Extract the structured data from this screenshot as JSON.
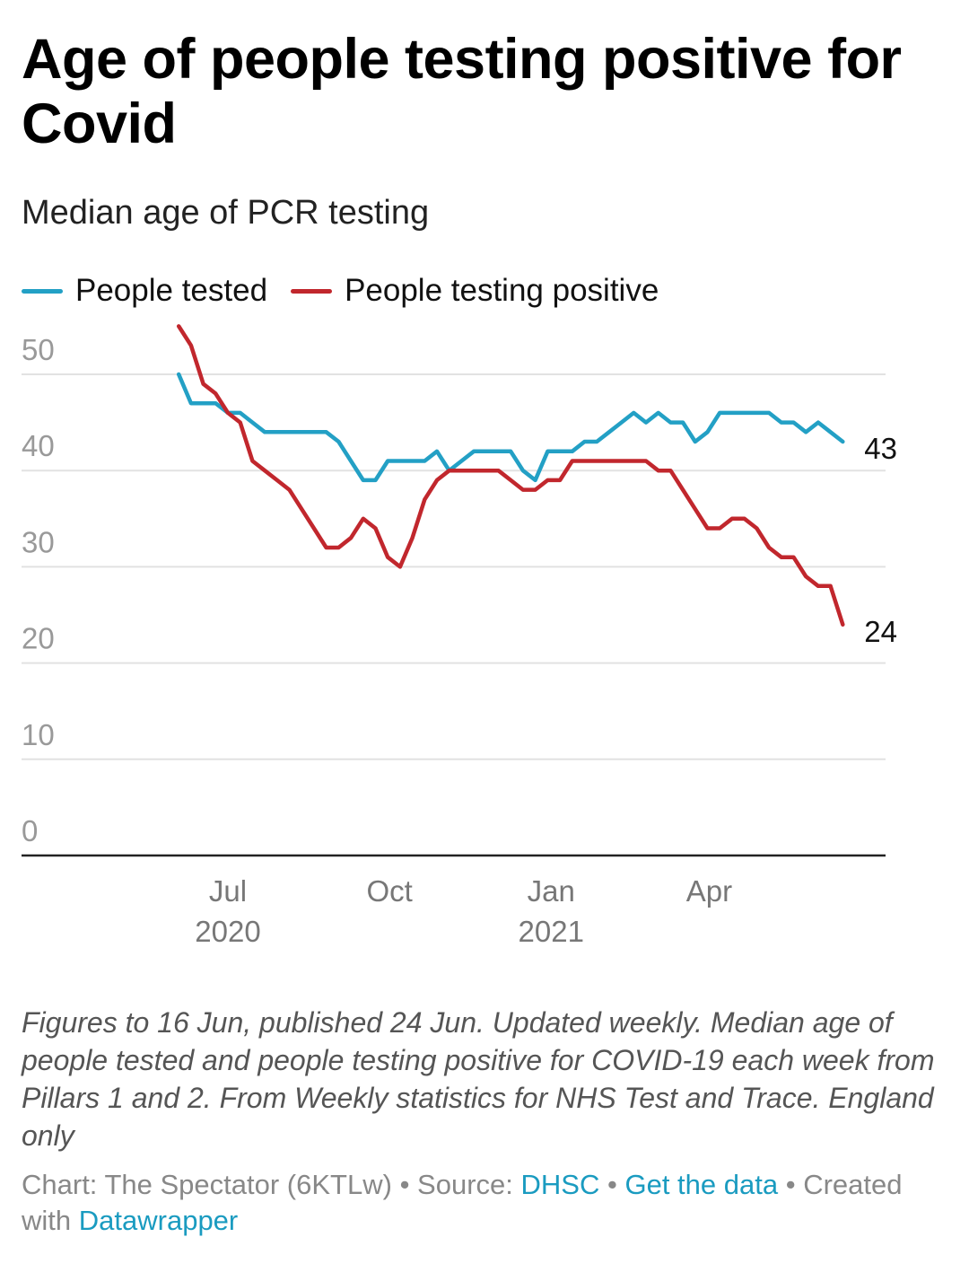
{
  "header": {
    "title": "Age of people testing positive for Covid",
    "subtitle": "Median age of PCR testing"
  },
  "legend": [
    {
      "name": "People tested",
      "color": "#23a0c5"
    },
    {
      "name": "People testing positive",
      "color": "#c1272d"
    }
  ],
  "chart_data": {
    "type": "line",
    "x_unit": "date",
    "ylim": [
      0,
      50
    ],
    "y_ticks": [
      0,
      10,
      20,
      30,
      40,
      50
    ],
    "grid": true,
    "legend_position": "top-left",
    "x_ticks": [
      {
        "date": "2020-07-01",
        "month": "Jul",
        "year": "2020"
      },
      {
        "date": "2020-10-01",
        "month": "Oct",
        "year": ""
      },
      {
        "date": "2021-01-01",
        "month": "Jan",
        "year": "2021"
      },
      {
        "date": "2021-04-01",
        "month": "Apr",
        "year": ""
      }
    ],
    "series": [
      {
        "name": "People tested",
        "color": "#23a0c5",
        "end_label": "43",
        "points": [
          [
            "2020-06-03",
            50
          ],
          [
            "2020-06-10",
            47
          ],
          [
            "2020-06-17",
            47
          ],
          [
            "2020-06-24",
            47
          ],
          [
            "2020-07-01",
            46
          ],
          [
            "2020-07-08",
            46
          ],
          [
            "2020-07-15",
            45
          ],
          [
            "2020-07-22",
            44
          ],
          [
            "2020-07-29",
            44
          ],
          [
            "2020-08-05",
            44
          ],
          [
            "2020-08-12",
            44
          ],
          [
            "2020-08-19",
            44
          ],
          [
            "2020-08-26",
            44
          ],
          [
            "2020-09-02",
            43
          ],
          [
            "2020-09-09",
            41
          ],
          [
            "2020-09-16",
            39
          ],
          [
            "2020-09-23",
            39
          ],
          [
            "2020-09-30",
            41
          ],
          [
            "2020-10-07",
            41
          ],
          [
            "2020-10-14",
            41
          ],
          [
            "2020-10-21",
            41
          ],
          [
            "2020-10-28",
            42
          ],
          [
            "2020-11-04",
            40
          ],
          [
            "2020-11-11",
            41
          ],
          [
            "2020-11-18",
            42
          ],
          [
            "2020-11-25",
            42
          ],
          [
            "2020-12-02",
            42
          ],
          [
            "2020-12-09",
            42
          ],
          [
            "2020-12-16",
            40
          ],
          [
            "2020-12-23",
            39
          ],
          [
            "2020-12-30",
            42
          ],
          [
            "2021-01-06",
            42
          ],
          [
            "2021-01-13",
            42
          ],
          [
            "2021-01-20",
            43
          ],
          [
            "2021-01-27",
            43
          ],
          [
            "2021-02-03",
            44
          ],
          [
            "2021-02-10",
            45
          ],
          [
            "2021-02-17",
            46
          ],
          [
            "2021-02-24",
            45
          ],
          [
            "2021-03-03",
            46
          ],
          [
            "2021-03-10",
            45
          ],
          [
            "2021-03-17",
            45
          ],
          [
            "2021-03-24",
            43
          ],
          [
            "2021-03-31",
            44
          ],
          [
            "2021-04-07",
            46
          ],
          [
            "2021-04-14",
            46
          ],
          [
            "2021-04-21",
            46
          ],
          [
            "2021-04-28",
            46
          ],
          [
            "2021-05-05",
            46
          ],
          [
            "2021-05-12",
            45
          ],
          [
            "2021-05-19",
            45
          ],
          [
            "2021-05-26",
            44
          ],
          [
            "2021-06-02",
            45
          ],
          [
            "2021-06-09",
            44
          ],
          [
            "2021-06-16",
            43
          ]
        ]
      },
      {
        "name": "People testing positive",
        "color": "#c1272d",
        "end_label": "24",
        "points": [
          [
            "2020-06-03",
            55
          ],
          [
            "2020-06-10",
            53
          ],
          [
            "2020-06-17",
            49
          ],
          [
            "2020-06-24",
            48
          ],
          [
            "2020-07-01",
            46
          ],
          [
            "2020-07-08",
            45
          ],
          [
            "2020-07-15",
            41
          ],
          [
            "2020-07-22",
            40
          ],
          [
            "2020-07-29",
            39
          ],
          [
            "2020-08-05",
            38
          ],
          [
            "2020-08-12",
            36
          ],
          [
            "2020-08-19",
            34
          ],
          [
            "2020-08-26",
            32
          ],
          [
            "2020-09-02",
            32
          ],
          [
            "2020-09-09",
            33
          ],
          [
            "2020-09-16",
            35
          ],
          [
            "2020-09-23",
            34
          ],
          [
            "2020-09-30",
            31
          ],
          [
            "2020-10-07",
            30
          ],
          [
            "2020-10-14",
            33
          ],
          [
            "2020-10-21",
            37
          ],
          [
            "2020-10-28",
            39
          ],
          [
            "2020-11-04",
            40
          ],
          [
            "2020-11-11",
            40
          ],
          [
            "2020-11-18",
            40
          ],
          [
            "2020-11-25",
            40
          ],
          [
            "2020-12-02",
            40
          ],
          [
            "2020-12-09",
            39
          ],
          [
            "2020-12-16",
            38
          ],
          [
            "2020-12-23",
            38
          ],
          [
            "2020-12-30",
            39
          ],
          [
            "2021-01-06",
            39
          ],
          [
            "2021-01-13",
            41
          ],
          [
            "2021-01-20",
            41
          ],
          [
            "2021-01-27",
            41
          ],
          [
            "2021-02-03",
            41
          ],
          [
            "2021-02-10",
            41
          ],
          [
            "2021-02-17",
            41
          ],
          [
            "2021-02-24",
            41
          ],
          [
            "2021-03-03",
            40
          ],
          [
            "2021-03-10",
            40
          ],
          [
            "2021-03-17",
            38
          ],
          [
            "2021-03-24",
            36
          ],
          [
            "2021-03-31",
            34
          ],
          [
            "2021-04-07",
            34
          ],
          [
            "2021-04-14",
            35
          ],
          [
            "2021-04-21",
            35
          ],
          [
            "2021-04-28",
            34
          ],
          [
            "2021-05-05",
            32
          ],
          [
            "2021-05-12",
            31
          ],
          [
            "2021-05-19",
            31
          ],
          [
            "2021-05-26",
            29
          ],
          [
            "2021-06-02",
            28
          ],
          [
            "2021-06-09",
            28
          ],
          [
            "2021-06-16",
            24
          ]
        ]
      }
    ]
  },
  "footer": {
    "notes": "Figures to 16 Jun, published 24 Jun. Updated weekly. Median age of people tested and people testing positive for COVID-19 each week from Pillars 1 and 2. From Weekly statistics for NHS Test and Trace. England only",
    "chart_credit": "Chart: The Spectator (6KTLw)",
    "sep": "•",
    "source_label": "Source:",
    "source_link": "DHSC",
    "data_link": "Get the data",
    "created_text": "Created with",
    "tool_link": "Datawrapper"
  }
}
